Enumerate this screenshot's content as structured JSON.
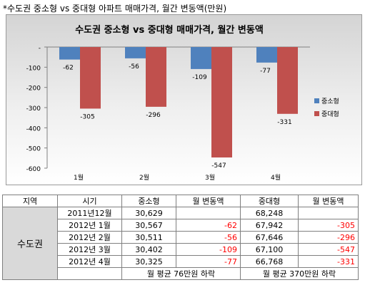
{
  "page_title": "*수도권 중소형 vs 중대형 아파트 매매가격, 월간 변동액(만원)",
  "chart_data": {
    "type": "bar",
    "title": "수도권 중소형 vs 중대형 매매가격, 월간 변동액",
    "categories": [
      "1월",
      "2월",
      "3월",
      "4월"
    ],
    "series": [
      {
        "name": "중소형",
        "values": [
          -62,
          -56,
          -109,
          -77
        ],
        "color": "#4f81bd"
      },
      {
        "name": "중대형",
        "values": [
          -305,
          -296,
          -547,
          -331
        ],
        "color": "#c0504d"
      }
    ],
    "data_labels": {
      "small": [
        "-62",
        "-56",
        "-109",
        "-77"
      ],
      "large": [
        "-305",
        "-296",
        "-547",
        "-331"
      ]
    },
    "y_ticks": [
      "-",
      "-100",
      "-200",
      "-300",
      "-400",
      "-500",
      "-600"
    ],
    "ylim": [
      -600,
      0
    ],
    "legend_position": "right",
    "background": "#ffffff"
  },
  "table": {
    "headers": [
      "지역",
      "시기",
      "중소형",
      "월 변동액",
      "중대형",
      "월 변동액"
    ],
    "region": "수도권",
    "rows": [
      {
        "period": "2011년12월",
        "small": "30,629",
        "small_change": "",
        "large": "68,248",
        "large_change": ""
      },
      {
        "period": "2012년 1월",
        "small": "30,567",
        "small_change": "-62",
        "large": "67,942",
        "large_change": "-305"
      },
      {
        "period": "2012년 2월",
        "small": "30,511",
        "small_change": "-56",
        "large": "67,646",
        "large_change": "-296"
      },
      {
        "period": "2012년 3월",
        "small": "30,402",
        "small_change": "-109",
        "large": "67,100",
        "large_change": "-547"
      },
      {
        "period": "2012년 4월",
        "small": "30,325",
        "small_change": "-77",
        "large": "66,768",
        "large_change": "-331"
      }
    ],
    "summary_small": "월 평균 76만원 하락",
    "summary_large": "월 평균 370만원 하락",
    "negative_color": "#ff0000"
  }
}
